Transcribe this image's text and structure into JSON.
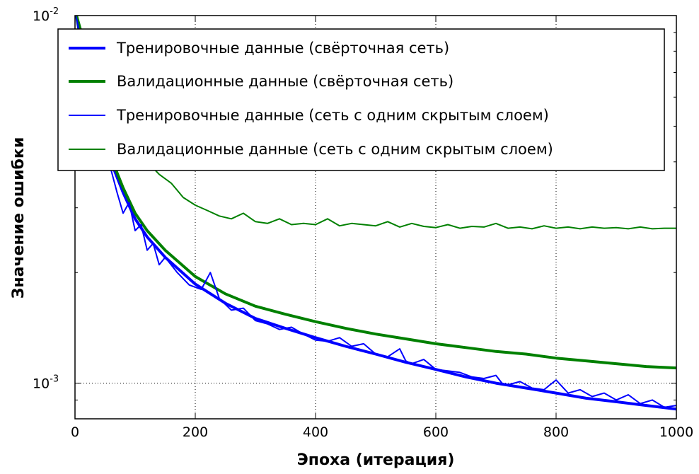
{
  "chart_data": {
    "type": "line",
    "title": "",
    "xlabel": "Эпоха (итерация)",
    "ylabel": "Значение ошибки",
    "xlim": [
      0,
      1000
    ],
    "ylim": [
      0.0008,
      0.01
    ],
    "yscale": "log",
    "grid": true,
    "legend_position": "top-right",
    "x_ticks": [
      0,
      200,
      400,
      600,
      800,
      1000
    ],
    "x_tick_labels": [
      "0",
      "200",
      "400",
      "600",
      "800",
      "1000"
    ],
    "y_ticks": [
      0.001,
      0.01
    ],
    "y_tick_labels": [
      {
        "base": "10",
        "exp": "-3"
      },
      {
        "base": "10",
        "exp": "-2"
      }
    ],
    "series": [
      {
        "name": "Тренировочные данные (свёрточная сеть)",
        "color": "#0000ff",
        "width": "thick",
        "x": [
          0,
          10,
          20,
          30,
          40,
          50,
          60,
          80,
          100,
          120,
          150,
          200,
          250,
          300,
          350,
          400,
          450,
          500,
          550,
          600,
          650,
          700,
          750,
          800,
          850,
          900,
          950,
          1000
        ],
        "y": [
          0.0105,
          0.0085,
          0.0068,
          0.0056,
          0.0048,
          0.0043,
          0.004,
          0.0033,
          0.0028,
          0.0025,
          0.0022,
          0.00186,
          0.00165,
          0.0015,
          0.00141,
          0.00133,
          0.00126,
          0.0012,
          0.00114,
          0.00109,
          0.00104,
          0.001,
          0.00097,
          0.00094,
          0.00091,
          0.00089,
          0.00087,
          0.00085
        ]
      },
      {
        "name": "Валидационные данные (свёрточная сеть)",
        "color": "#008000",
        "width": "thick",
        "x": [
          0,
          10,
          20,
          30,
          40,
          50,
          60,
          80,
          100,
          120,
          150,
          200,
          250,
          300,
          350,
          400,
          450,
          500,
          550,
          600,
          650,
          700,
          750,
          800,
          850,
          900,
          950,
          1000
        ],
        "y": [
          0.0105,
          0.0087,
          0.007,
          0.0058,
          0.005,
          0.0045,
          0.0041,
          0.0034,
          0.0029,
          0.0026,
          0.0023,
          0.00195,
          0.00175,
          0.00162,
          0.00154,
          0.00147,
          0.00141,
          0.00136,
          0.00132,
          0.00128,
          0.00125,
          0.00122,
          0.0012,
          0.00117,
          0.00115,
          0.00113,
          0.00111,
          0.0011
        ]
      },
      {
        "name": "Тренировочные данные (сеть с одним скрытым слоем)",
        "color": "#0000ff",
        "width": "thin",
        "x": [
          0,
          10,
          20,
          30,
          40,
          50,
          60,
          70,
          80,
          90,
          100,
          110,
          120,
          130,
          140,
          150,
          170,
          190,
          210,
          225,
          240,
          260,
          280,
          300,
          320,
          340,
          360,
          380,
          400,
          420,
          440,
          460,
          480,
          500,
          520,
          540,
          550,
          560,
          580,
          600,
          620,
          640,
          660,
          680,
          700,
          710,
          720,
          740,
          760,
          780,
          790,
          800,
          820,
          840,
          860,
          880,
          900,
          920,
          940,
          960,
          980,
          1000
        ],
        "y": [
          0.0105,
          0.0084,
          0.0066,
          0.0054,
          0.0047,
          0.0042,
          0.0038,
          0.0033,
          0.0029,
          0.0031,
          0.0026,
          0.0027,
          0.0023,
          0.0024,
          0.0021,
          0.0022,
          0.002,
          0.00185,
          0.0018,
          0.002,
          0.0017,
          0.00158,
          0.0016,
          0.00148,
          0.00145,
          0.0014,
          0.00142,
          0.00136,
          0.00131,
          0.0013,
          0.00133,
          0.00126,
          0.00128,
          0.0012,
          0.00118,
          0.00124,
          0.00115,
          0.00113,
          0.00116,
          0.00109,
          0.00108,
          0.00107,
          0.00104,
          0.00103,
          0.00105,
          0.001,
          0.00099,
          0.00101,
          0.00097,
          0.00096,
          0.00099,
          0.00102,
          0.00094,
          0.00096,
          0.00092,
          0.00094,
          0.0009,
          0.00093,
          0.00088,
          0.0009,
          0.00086,
          0.00087
        ]
      },
      {
        "name": "Валидационные данные (сеть с одним скрытым слоем)",
        "color": "#008000",
        "width": "thin",
        "x": [
          0,
          10,
          20,
          30,
          40,
          50,
          60,
          70,
          80,
          90,
          100,
          120,
          140,
          160,
          180,
          200,
          220,
          240,
          260,
          280,
          300,
          320,
          340,
          360,
          380,
          400,
          420,
          440,
          460,
          480,
          500,
          520,
          540,
          560,
          580,
          600,
          620,
          640,
          660,
          680,
          700,
          720,
          740,
          760,
          780,
          800,
          820,
          840,
          860,
          880,
          900,
          920,
          940,
          960,
          980,
          1000
        ],
        "y": [
          0.0105,
          0.0092,
          0.008,
          0.0072,
          0.0065,
          0.006,
          0.0056,
          0.0052,
          0.0049,
          0.0046,
          0.0043,
          0.004,
          0.0037,
          0.0035,
          0.0032,
          0.00305,
          0.00295,
          0.00285,
          0.0028,
          0.0029,
          0.00275,
          0.00272,
          0.0028,
          0.0027,
          0.00272,
          0.0027,
          0.0028,
          0.00268,
          0.00272,
          0.0027,
          0.00268,
          0.00275,
          0.00266,
          0.00272,
          0.00267,
          0.00265,
          0.0027,
          0.00264,
          0.00267,
          0.00266,
          0.00272,
          0.00264,
          0.00266,
          0.00263,
          0.00268,
          0.00264,
          0.00266,
          0.00263,
          0.00266,
          0.00264,
          0.00265,
          0.00263,
          0.00266,
          0.00263,
          0.00264,
          0.00264
        ]
      }
    ]
  }
}
